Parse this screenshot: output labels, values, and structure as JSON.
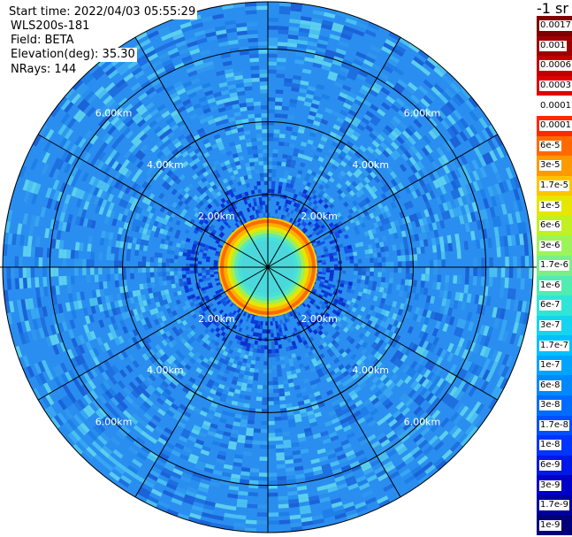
{
  "header": {
    "start_time": "Start time: 2022/04/03 05:55:29",
    "instrument": "WLS200s-181",
    "field": "Field: BETA",
    "elevation": "Elevation(deg): 35.30",
    "nrays": "NRays: 144"
  },
  "ppi": {
    "range_labels": [
      "2.00km",
      "4.00km",
      "6.00km"
    ],
    "max_range_km": 7.3,
    "rays": 144,
    "spokes": 12,
    "background_color": "#2a8ef0"
  },
  "colorbar": {
    "unit_label": "-1 sr",
    "levels": [
      {
        "label": "0.0017",
        "color": "#7f0000"
      },
      {
        "label": "0.001",
        "color": "#9e0000"
      },
      {
        "label": "0.0006",
        "color": "#c00000"
      },
      {
        "label": "0.0003",
        "color": "#e00000"
      },
      {
        "label": "0.00017",
        "color": "#ffffff"
      },
      {
        "label": "0.0001",
        "color": "#ff2a00"
      },
      {
        "label": "6e-5",
        "color": "#ff6a00"
      },
      {
        "label": "3e-5",
        "color": "#ff9900"
      },
      {
        "label": "1.7e-5",
        "color": "#ffc400"
      },
      {
        "label": "1e-5",
        "color": "#e6e600"
      },
      {
        "label": "6e-6",
        "color": "#c2f020"
      },
      {
        "label": "3e-6",
        "color": "#9cf558"
      },
      {
        "label": "1.7e-6",
        "color": "#78f088"
      },
      {
        "label": "1e-6",
        "color": "#50ecb0"
      },
      {
        "label": "6e-7",
        "color": "#2ee6d6"
      },
      {
        "label": "3e-7",
        "color": "#14d4f0"
      },
      {
        "label": "1.7e-7",
        "color": "#00c0ff"
      },
      {
        "label": "1e-7",
        "color": "#00a4ff"
      },
      {
        "label": "6e-8",
        "color": "#0088ff"
      },
      {
        "label": "3e-8",
        "color": "#006cff"
      },
      {
        "label": "1.7e-8",
        "color": "#0050ff"
      },
      {
        "label": "1e-8",
        "color": "#0034ff"
      },
      {
        "label": "6e-9",
        "color": "#0018e8"
      },
      {
        "label": "3e-9",
        "color": "#0000c8"
      },
      {
        "label": "1.7e-9",
        "color": "#0000a0"
      },
      {
        "label": "1e-9",
        "color": "#000078"
      }
    ]
  }
}
